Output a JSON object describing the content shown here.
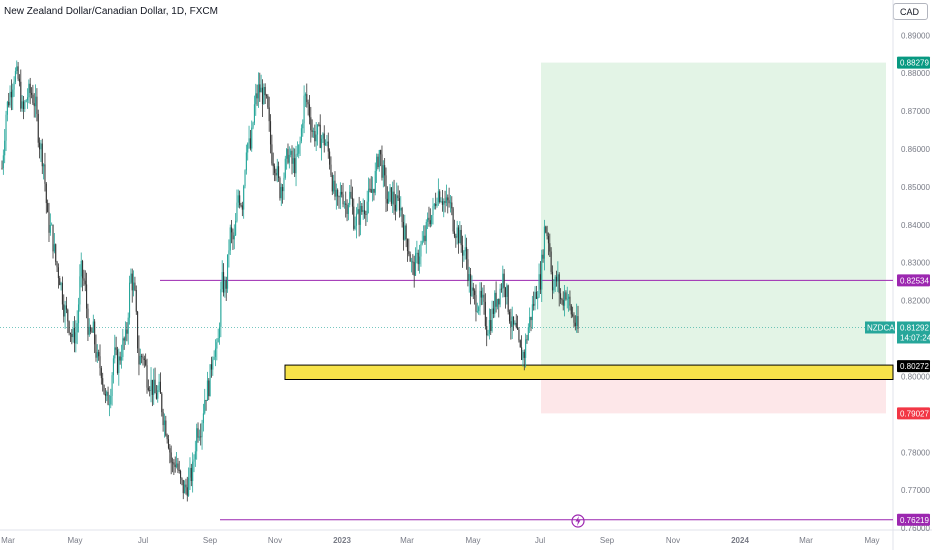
{
  "header": {
    "symbol_title": "New Zealand Dollar/Canadian Dollar, 1D, FXCM",
    "currency_button": "CAD"
  },
  "chart_data": {
    "type": "candlestick",
    "symbol": "NZDCAD",
    "x_ticks": [
      "Mar",
      "May",
      "Jul",
      "Sep",
      "Nov",
      "2023",
      "Mar",
      "May",
      "Jul",
      "Sep",
      "Nov",
      "2024",
      "Mar",
      "May"
    ],
    "y_ticks": [
      "0.89000",
      "0.88000",
      "0.87000",
      "0.86000",
      "0.85000",
      "0.84000",
      "0.83000",
      "0.82000",
      "0.81000",
      "0.80000",
      "0.79000",
      "0.78000",
      "0.77000",
      "0.76000"
    ],
    "ylim": [
      0.7595,
      0.8935
    ],
    "price_path": [
      [
        0.855,
        0.87
      ],
      [
        0.875,
        0.88
      ],
      [
        0.878,
        0.869
      ],
      [
        0.874,
        0.875
      ],
      [
        0.872,
        0.862
      ],
      [
        0.857,
        0.841
      ],
      [
        0.838,
        0.83
      ],
      [
        0.826,
        0.818
      ],
      [
        0.815,
        0.81
      ],
      [
        0.812,
        0.828
      ],
      [
        0.824,
        0.81
      ],
      [
        0.812,
        0.804
      ],
      [
        0.802,
        0.793
      ],
      [
        0.795,
        0.806
      ],
      [
        0.803,
        0.808
      ],
      [
        0.81,
        0.827
      ],
      [
        0.822,
        0.804
      ],
      [
        0.806,
        0.8
      ],
      [
        0.798,
        0.795
      ],
      [
        0.796,
        0.789
      ],
      [
        0.785,
        0.776
      ],
      [
        0.778,
        0.772
      ],
      [
        0.77,
        0.772
      ],
      [
        0.775,
        0.786
      ],
      [
        0.787,
        0.795
      ],
      [
        0.798,
        0.808
      ],
      [
        0.806,
        0.825
      ],
      [
        0.823,
        0.838
      ],
      [
        0.835,
        0.848
      ],
      [
        0.846,
        0.862
      ],
      [
        0.86,
        0.872
      ],
      [
        0.876,
        0.874
      ],
      [
        0.871,
        0.859
      ],
      [
        0.856,
        0.849
      ],
      [
        0.853,
        0.859
      ],
      [
        0.856,
        0.856
      ],
      [
        0.862,
        0.874
      ],
      [
        0.871,
        0.864
      ],
      [
        0.864,
        0.863
      ],
      [
        0.862,
        0.858
      ],
      [
        0.849,
        0.845
      ],
      [
        0.849,
        0.845
      ],
      [
        0.848,
        0.841
      ],
      [
        0.842,
        0.844
      ],
      [
        0.846,
        0.848
      ],
      [
        0.852,
        0.86
      ],
      [
        0.853,
        0.846
      ],
      [
        0.848,
        0.845
      ],
      [
        0.846,
        0.838
      ],
      [
        0.835,
        0.828
      ],
      [
        0.83,
        0.834
      ],
      [
        0.836,
        0.842
      ],
      [
        0.843,
        0.849
      ],
      [
        0.848,
        0.845
      ],
      [
        0.846,
        0.84
      ],
      [
        0.838,
        0.834
      ],
      [
        0.832,
        0.823
      ],
      [
        0.82,
        0.82
      ],
      [
        0.819,
        0.813
      ],
      [
        0.815,
        0.82
      ],
      [
        0.822,
        0.827
      ],
      [
        0.82,
        0.813
      ],
      [
        0.812,
        0.806
      ],
      [
        0.806,
        0.813
      ],
      [
        0.818,
        0.823
      ],
      [
        0.826,
        0.84
      ],
      [
        0.836,
        0.823
      ],
      [
        0.826,
        0.819
      ],
      [
        0.823,
        0.818
      ],
      [
        0.815,
        0.812
      ]
    ],
    "long_position": {
      "target": 0.88279,
      "entry": 0.80272,
      "stop": 0.79027
    },
    "levels": [
      {
        "price": 0.82534,
        "label": "0.82534",
        "color": "#9c27b0"
      },
      {
        "price": 0.76219,
        "label": "0.76219",
        "color": "#9c27b0"
      }
    ],
    "demand_zone": {
      "top": 0.803,
      "bottom": 0.7992,
      "color": "#f7e34a"
    },
    "price_labels": [
      {
        "text": "0.88279",
        "color": "#089981",
        "price": 0.88279
      },
      {
        "text": "0.82534",
        "color": "#9c27b0",
        "price": 0.82534
      },
      {
        "text": "0.80272",
        "color": "#000000",
        "price": 0.80272
      },
      {
        "text": "0.79027",
        "color": "#f23645",
        "price": 0.79027
      },
      {
        "text": "0.76219",
        "color": "#9c27b0",
        "price": 0.76219
      }
    ],
    "current_price": {
      "symbol_label": "NZDCAD",
      "price": "0.81292",
      "countdown": "14:07:24",
      "value": 0.81292,
      "color": "#26a69a"
    },
    "colors": {
      "up": "#26a69a",
      "down": "#333333",
      "grid": "#f0f3fa",
      "target_zone": "#e3f4e6",
      "stop_zone": "#fde7e9"
    }
  }
}
